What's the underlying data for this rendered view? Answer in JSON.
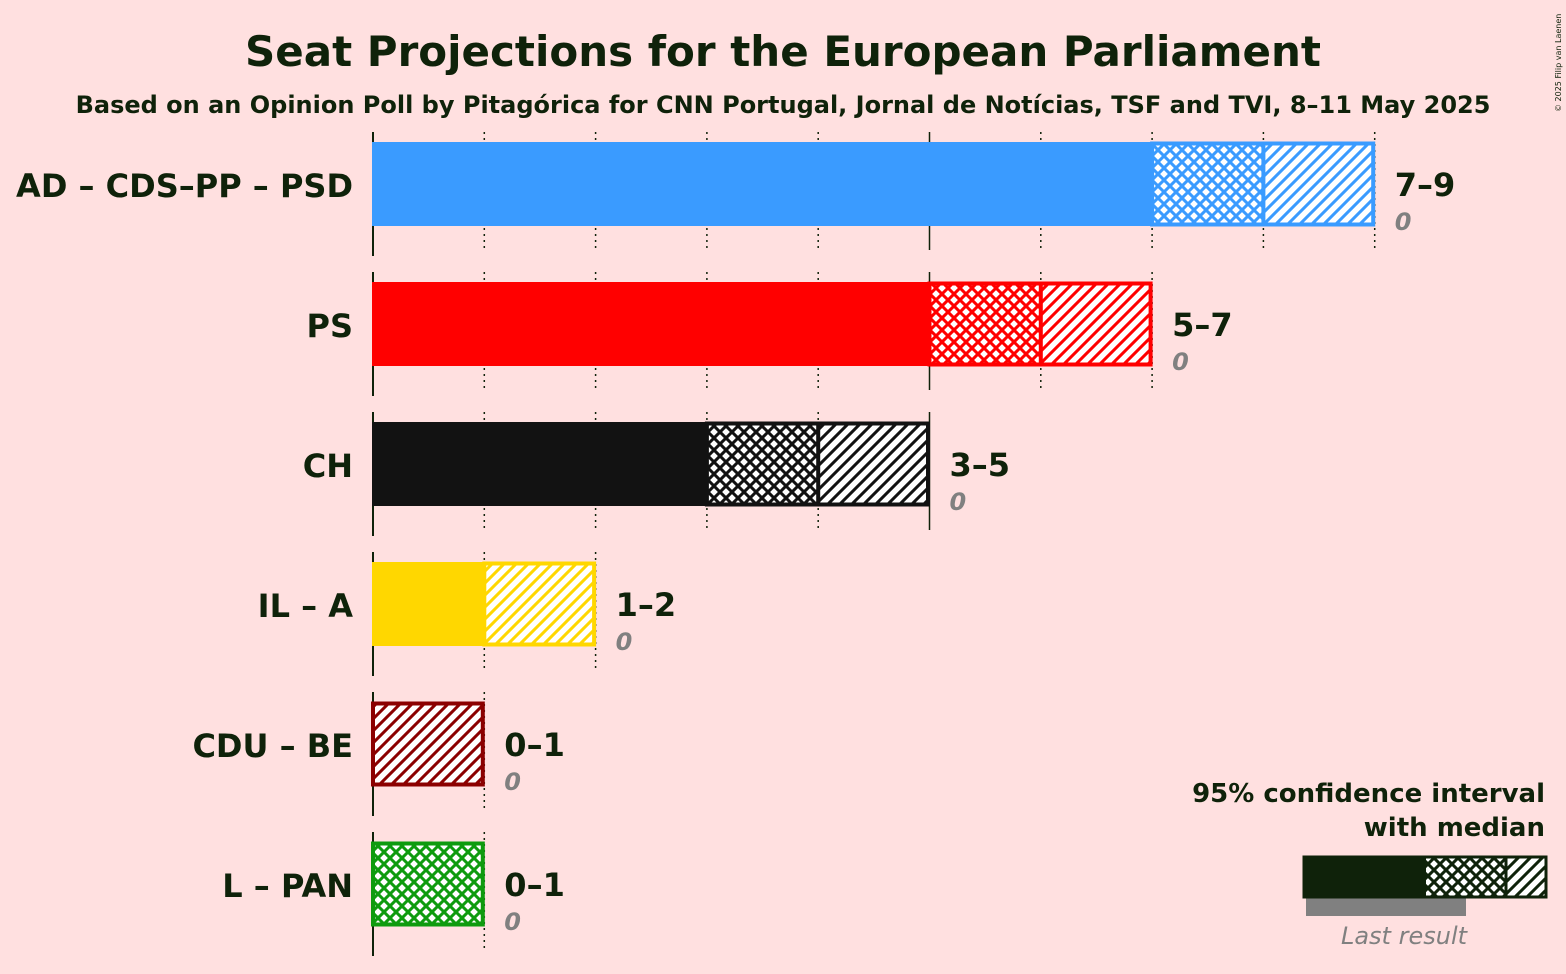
{
  "title": "Seat Projections for the European Parliament",
  "subtitle": "Based on an Opinion Poll by Pitagórica for CNN Portugal, Jornal de Notícias, TSF and TVI, 8–11 May 2025",
  "copyright": "© 2025 Filip van Laenen",
  "legend": {
    "title_line1": "95% confidence interval",
    "title_line2": "with median",
    "last_result": "Last result"
  },
  "chart_data": {
    "type": "bar",
    "orientation": "horizontal",
    "title": "Seat Projections for the European Parliament",
    "subtitle": "Based on an Opinion Poll by Pitagórica for CNN Portugal, Jornal de Notícias, TSF and TVI, 8–11 May 2025",
    "xlim": [
      0,
      9
    ],
    "parties": [
      {
        "name": "AD – CDS–PP – PSD",
        "low": 7,
        "median": 8,
        "high": 9,
        "range_label": "7–9",
        "last_result": 0,
        "last_label": "0",
        "color": "#3A9BFF",
        "crosshatch": true
      },
      {
        "name": "PS",
        "low": 5,
        "median": 6,
        "high": 7,
        "range_label": "5–7",
        "last_result": 0,
        "last_label": "0",
        "color": "#FF0000",
        "crosshatch": true
      },
      {
        "name": "CH",
        "low": 3,
        "median": 4,
        "high": 5,
        "range_label": "3–5",
        "last_result": 0,
        "last_label": "0",
        "color": "#121212",
        "crosshatch": true
      },
      {
        "name": "IL – A",
        "low": 1,
        "median": 1,
        "high": 2,
        "range_label": "1–2",
        "last_result": 0,
        "last_label": "0",
        "color": "#FFD700",
        "crosshatch": false
      },
      {
        "name": "CDU – BE",
        "low": 0,
        "median": 0,
        "high": 1,
        "range_label": "0–1",
        "last_result": 0,
        "last_label": "0",
        "color": "#8B0000",
        "crosshatch": false
      },
      {
        "name": "L – PAN",
        "low": 0,
        "median": 1,
        "high": 1,
        "range_label": "0–1",
        "last_result": 0,
        "last_label": "0",
        "color": "#0E9B0E",
        "crosshatch": true
      }
    ]
  }
}
